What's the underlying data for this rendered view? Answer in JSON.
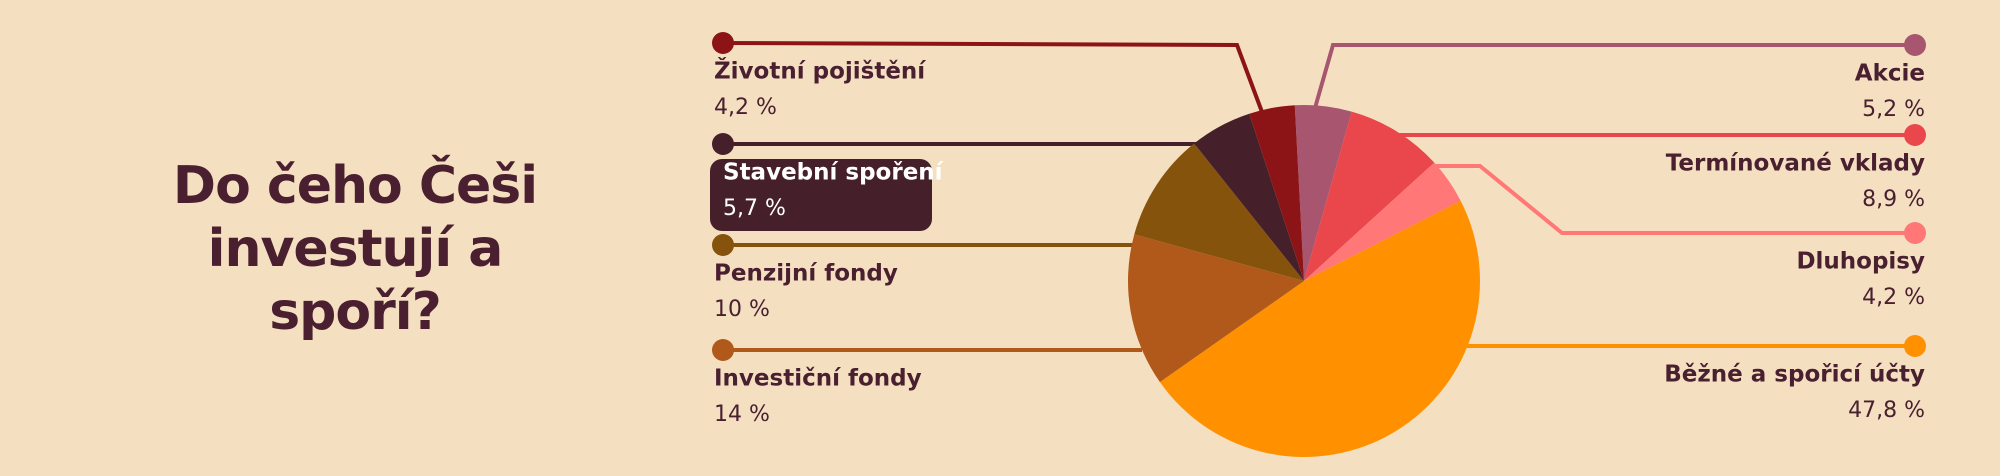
{
  "chart_data": {
    "type": "pie",
    "title": "Do čeho Češi investují a spoří?",
    "categories": [
      "Akcie",
      "Termínované vklady",
      "Dluhopisy",
      "Běžné a spořicí účty",
      "Investiční fondy",
      "Penzijní fondy",
      "Stavební spoření",
      "Životní pojištění"
    ],
    "values": [
      5.2,
      8.9,
      4.2,
      47.8,
      14,
      10,
      5.7,
      4.2
    ],
    "value_labels": [
      "5,2 %",
      "8,9 %",
      "4,2 %",
      "47,8 %",
      "14 %",
      "10 %",
      "5,7 %",
      "4,2 %"
    ],
    "colors": [
      "#a8566f",
      "#e9474b",
      "#ff7777",
      "#ff9000",
      "#b0591b",
      "#86530c",
      "#45202a",
      "#8c1416"
    ]
  }
}
